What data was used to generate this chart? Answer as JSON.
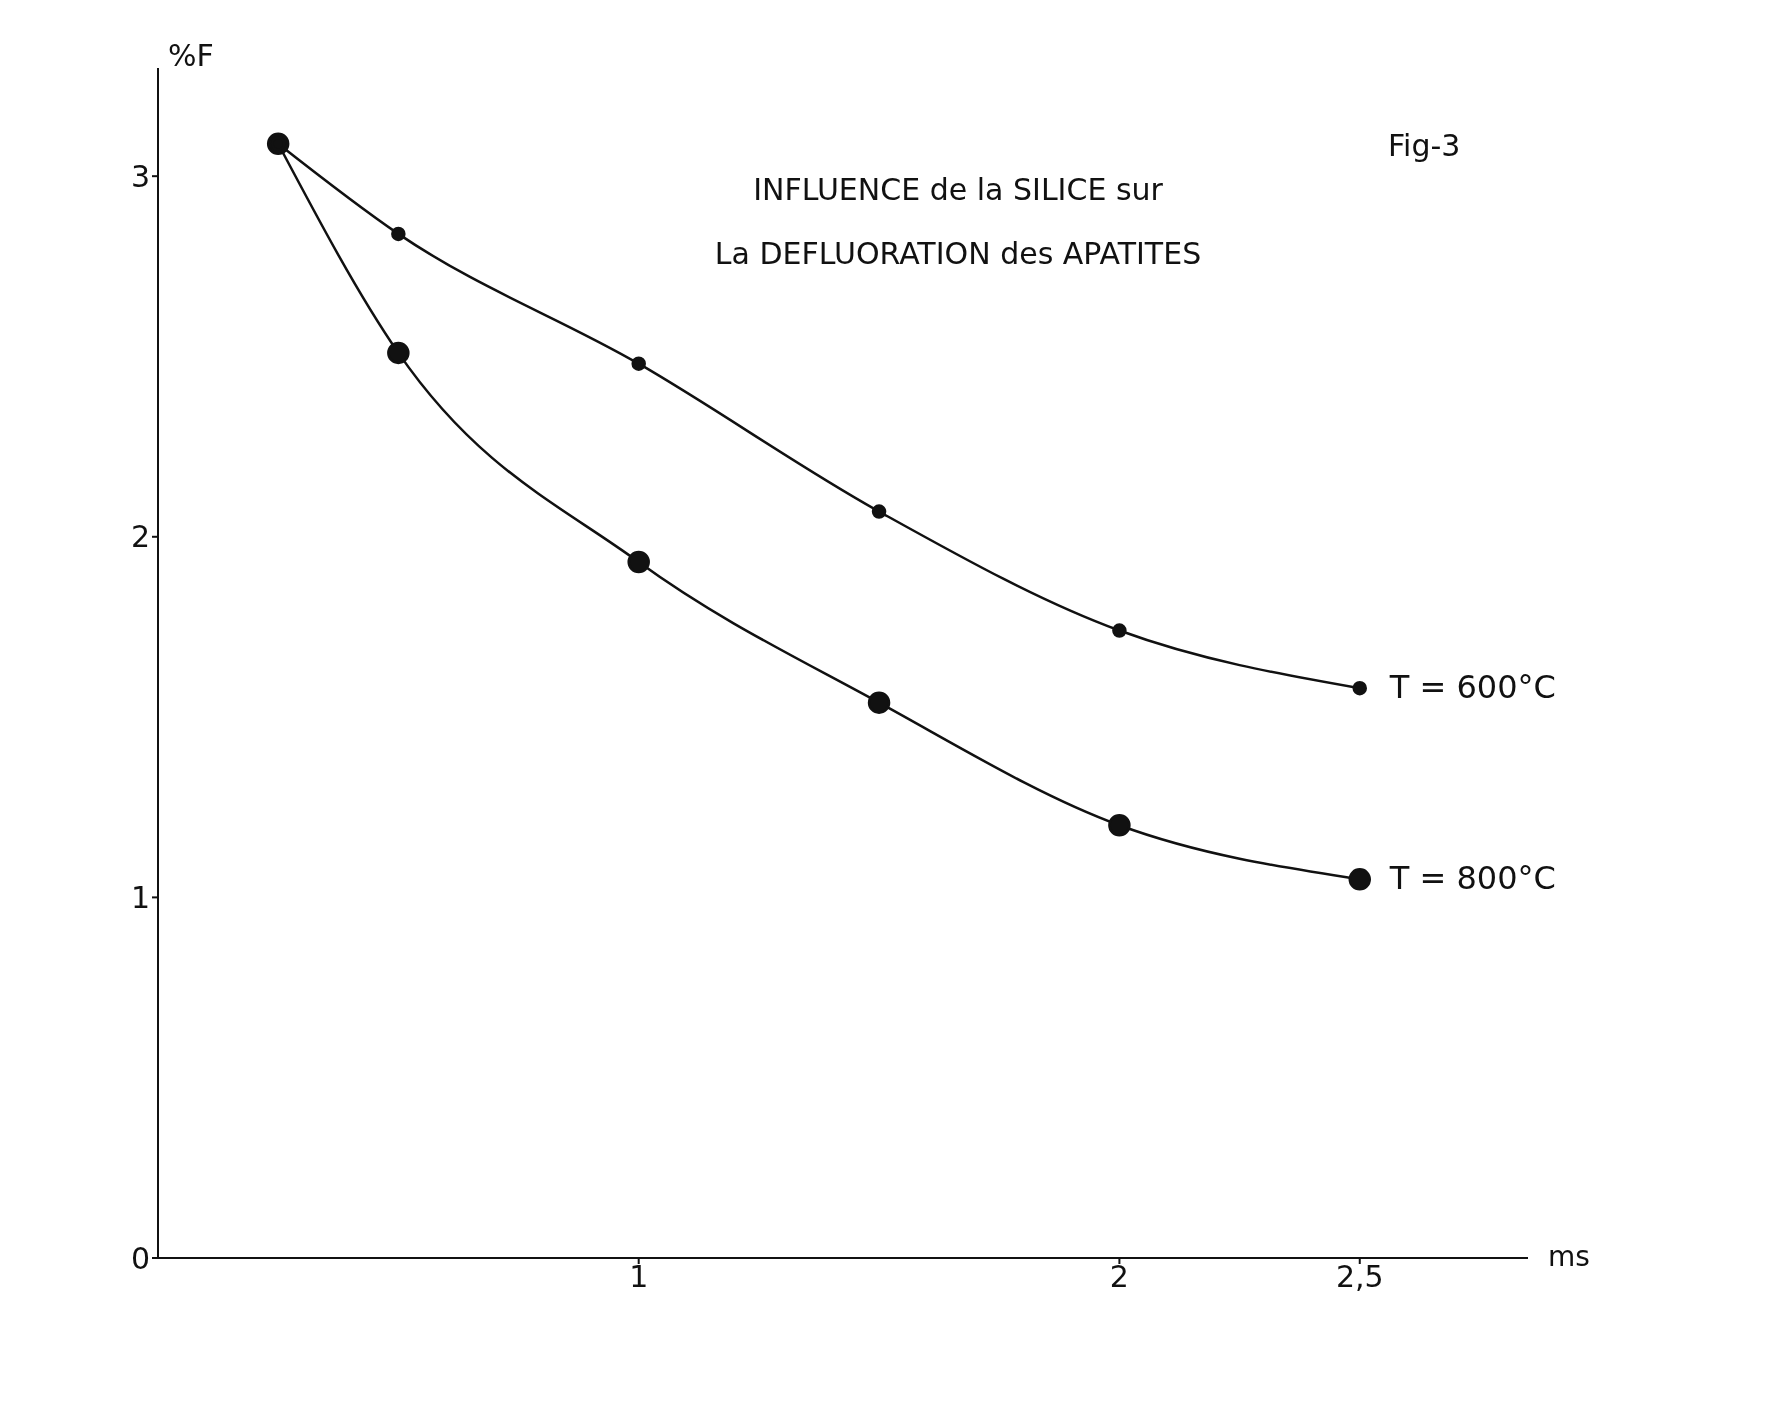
{
  "chart_data": {
    "type": "line",
    "title": "INFLUENCE de la SILICE sur\nLa DEFLUORATION des APATITES",
    "annotations": [
      "Fig-3"
    ],
    "xlabel": "ms",
    "ylabel": "%F",
    "x": [
      0.25,
      0.5,
      1,
      1.5,
      2,
      2.5
    ],
    "series": [
      {
        "name": "T = 600°C",
        "color": "#111111",
        "values": [
          3.09,
          2.84,
          2.48,
          2.07,
          1.74,
          1.58
        ]
      },
      {
        "name": "T = 800°C",
        "color": "#111111",
        "values": [
          3.09,
          2.51,
          1.93,
          1.54,
          1.2,
          1.05
        ]
      }
    ],
    "xlim": [
      0,
      2.85
    ],
    "xticks": [
      1,
      2,
      {
        "value": 2.5,
        "label": "2,5"
      }
    ],
    "ylim": [
      0,
      3.3
    ],
    "yticks": [
      0,
      1,
      2,
      3
    ],
    "grid": false,
    "legend": false,
    "marker": "circle",
    "line_style": "solid"
  }
}
